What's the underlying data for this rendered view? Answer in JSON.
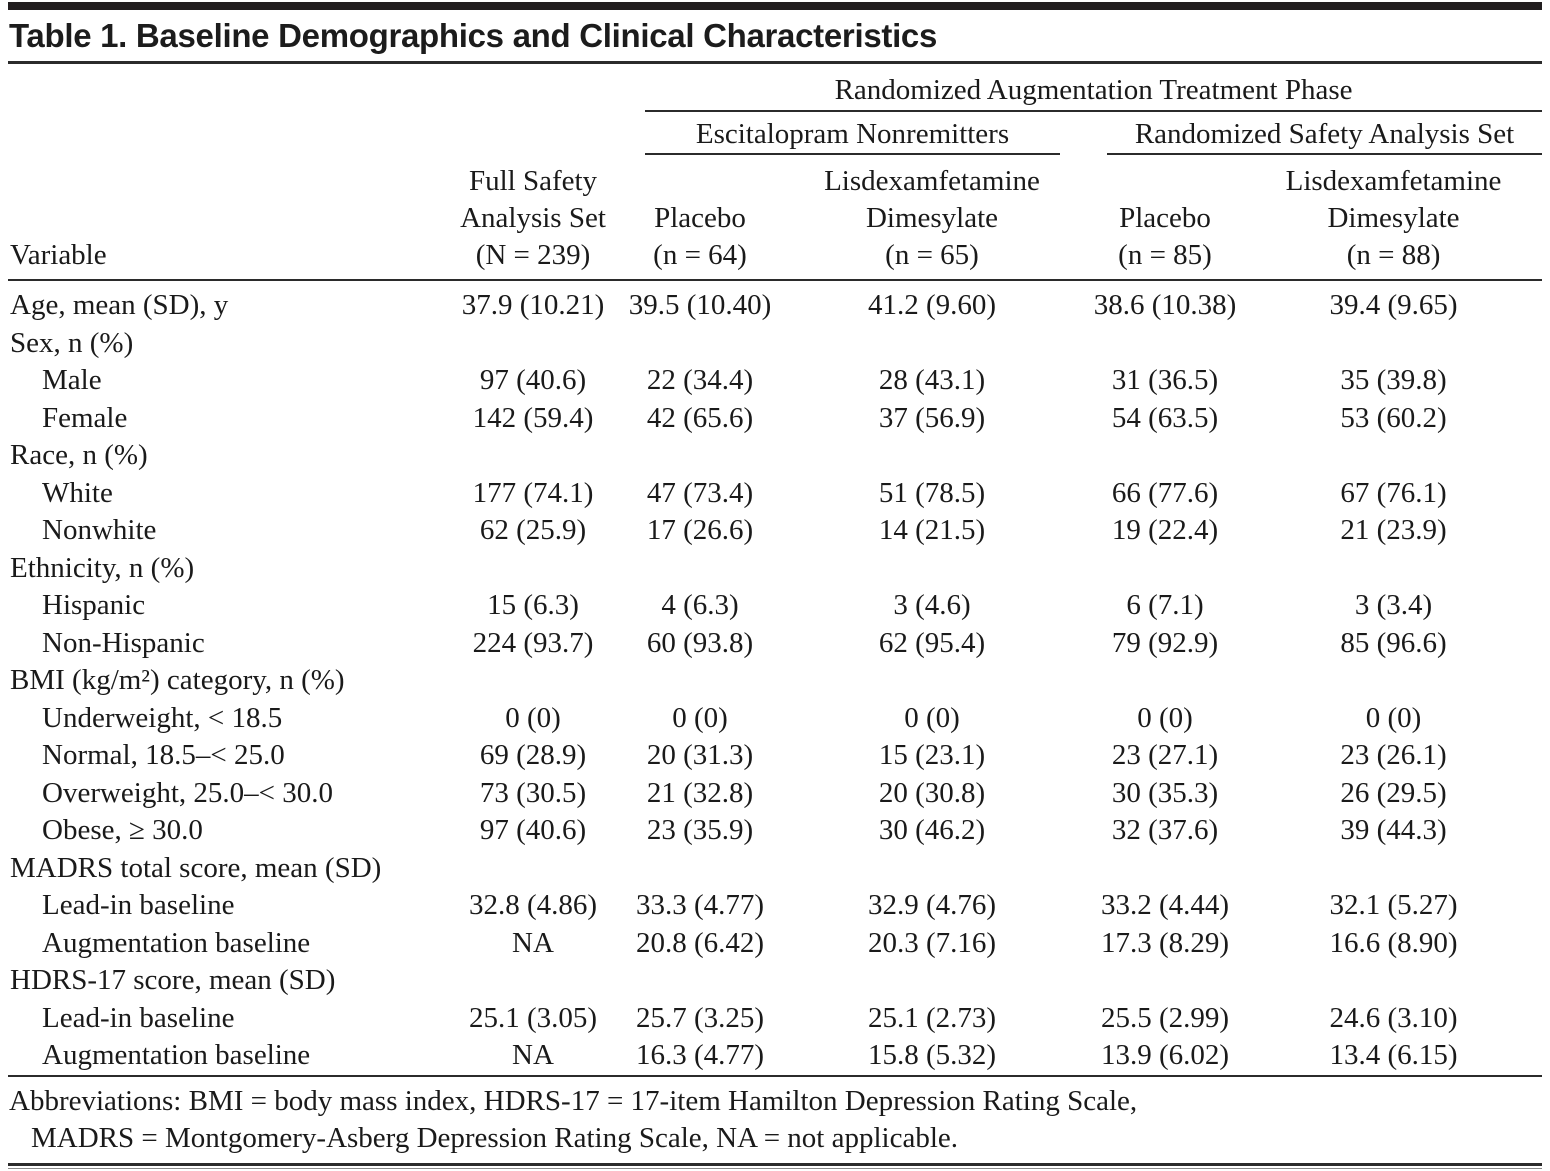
{
  "title": "Table 1. Baseline Demographics and Clinical Characteristics",
  "colors": {
    "text": "#1a1a1a",
    "rule": "#2b2b2b",
    "background": "#ffffff"
  },
  "table": {
    "phase_header": "Randomized Augmentation Treatment Phase",
    "groups": {
      "left": "Escitalopram Nonremitters",
      "right": "Randomized Safety Analysis Set"
    },
    "column_headers": {
      "variable": "Variable",
      "full_safety": "Full Safety\nAnalysis Set\n(N = 239)",
      "esc_placebo": "Placebo\n(n = 64)",
      "esc_ldx": "Lisdexamfetamine\nDimesylate\n(n = 65)",
      "rand_placebo": "Placebo\n(n = 85)",
      "rand_ldx": "Lisdexamfetamine\nDimesylate\n(n = 88)"
    },
    "rows": [
      {
        "label": "Age, mean (SD), y",
        "indent": 0,
        "values": [
          "37.9 (10.21)",
          "39.5 (10.40)",
          "41.2 (9.60)",
          "38.6 (10.38)",
          "39.4 (9.65)"
        ]
      },
      {
        "label": "Sex, n (%)",
        "indent": 0,
        "values": [
          "",
          "",
          "",
          "",
          ""
        ]
      },
      {
        "label": "Male",
        "indent": 1,
        "values": [
          "97 (40.6)",
          "22 (34.4)",
          "28 (43.1)",
          "31 (36.5)",
          "35 (39.8)"
        ]
      },
      {
        "label": "Female",
        "indent": 1,
        "values": [
          "142 (59.4)",
          "42 (65.6)",
          "37 (56.9)",
          "54 (63.5)",
          "53 (60.2)"
        ]
      },
      {
        "label": "Race, n (%)",
        "indent": 0,
        "values": [
          "",
          "",
          "",
          "",
          ""
        ]
      },
      {
        "label": "White",
        "indent": 1,
        "values": [
          "177 (74.1)",
          "47 (73.4)",
          "51 (78.5)",
          "66 (77.6)",
          "67 (76.1)"
        ]
      },
      {
        "label": "Nonwhite",
        "indent": 1,
        "values": [
          "62 (25.9)",
          "17 (26.6)",
          "14 (21.5)",
          "19 (22.4)",
          "21 (23.9)"
        ]
      },
      {
        "label": "Ethnicity, n (%)",
        "indent": 0,
        "values": [
          "",
          "",
          "",
          "",
          ""
        ]
      },
      {
        "label": "Hispanic",
        "indent": 1,
        "values": [
          "15 (6.3)",
          "4 (6.3)",
          "3 (4.6)",
          "6 (7.1)",
          "3 (3.4)"
        ]
      },
      {
        "label": "Non-Hispanic",
        "indent": 1,
        "values": [
          "224 (93.7)",
          "60 (93.8)",
          "62 (95.4)",
          "79 (92.9)",
          "85 (96.6)"
        ]
      },
      {
        "label": "BMI (kg/m²) category, n (%)",
        "indent": 0,
        "values": [
          "",
          "",
          "",
          "",
          ""
        ]
      },
      {
        "label": "Underweight, < 18.5",
        "indent": 1,
        "values": [
          "0 (0)",
          "0 (0)",
          "0 (0)",
          "0 (0)",
          "0 (0)"
        ]
      },
      {
        "label": "Normal, 18.5–< 25.0",
        "indent": 1,
        "values": [
          "69 (28.9)",
          "20 (31.3)",
          "15 (23.1)",
          "23 (27.1)",
          "23 (26.1)"
        ]
      },
      {
        "label": "Overweight, 25.0–< 30.0",
        "indent": 1,
        "values": [
          "73 (30.5)",
          "21 (32.8)",
          "20 (30.8)",
          "30 (35.3)",
          "26 (29.5)"
        ]
      },
      {
        "label": "Obese, ≥ 30.0",
        "indent": 1,
        "values": [
          "97 (40.6)",
          "23 (35.9)",
          "30 (46.2)",
          "32 (37.6)",
          "39 (44.3)"
        ]
      },
      {
        "label": "MADRS total score, mean (SD)",
        "indent": 0,
        "values": [
          "",
          "",
          "",
          "",
          ""
        ]
      },
      {
        "label": "Lead-in baseline",
        "indent": 1,
        "values": [
          "32.8 (4.86)",
          "33.3 (4.77)",
          "32.9 (4.76)",
          "33.2 (4.44)",
          "32.1 (5.27)"
        ]
      },
      {
        "label": "Augmentation baseline",
        "indent": 1,
        "values": [
          "NA",
          "20.8 (6.42)",
          "20.3 (7.16)",
          "17.3 (8.29)",
          "16.6 (8.90)"
        ]
      },
      {
        "label": "HDRS-17 score, mean (SD)",
        "indent": 0,
        "values": [
          "",
          "",
          "",
          "",
          ""
        ]
      },
      {
        "label": "Lead-in baseline",
        "indent": 1,
        "values": [
          "25.1 (3.05)",
          "25.7 (3.25)",
          "25.1 (2.73)",
          "25.5 (2.99)",
          "24.6 (3.10)"
        ]
      },
      {
        "label": "Augmentation baseline",
        "indent": 1,
        "values": [
          "NA",
          "16.3 (4.77)",
          "15.8 (5.32)",
          "13.9 (6.02)",
          "13.4 (6.15)"
        ]
      }
    ]
  },
  "footnote": {
    "line1": "Abbreviations: BMI = body mass index, HDRS-17 = 17-item Hamilton Depression Rating Scale,",
    "line2": "MADRS = Montgomery-Asberg Depression Rating Scale, NA = not applicable."
  }
}
